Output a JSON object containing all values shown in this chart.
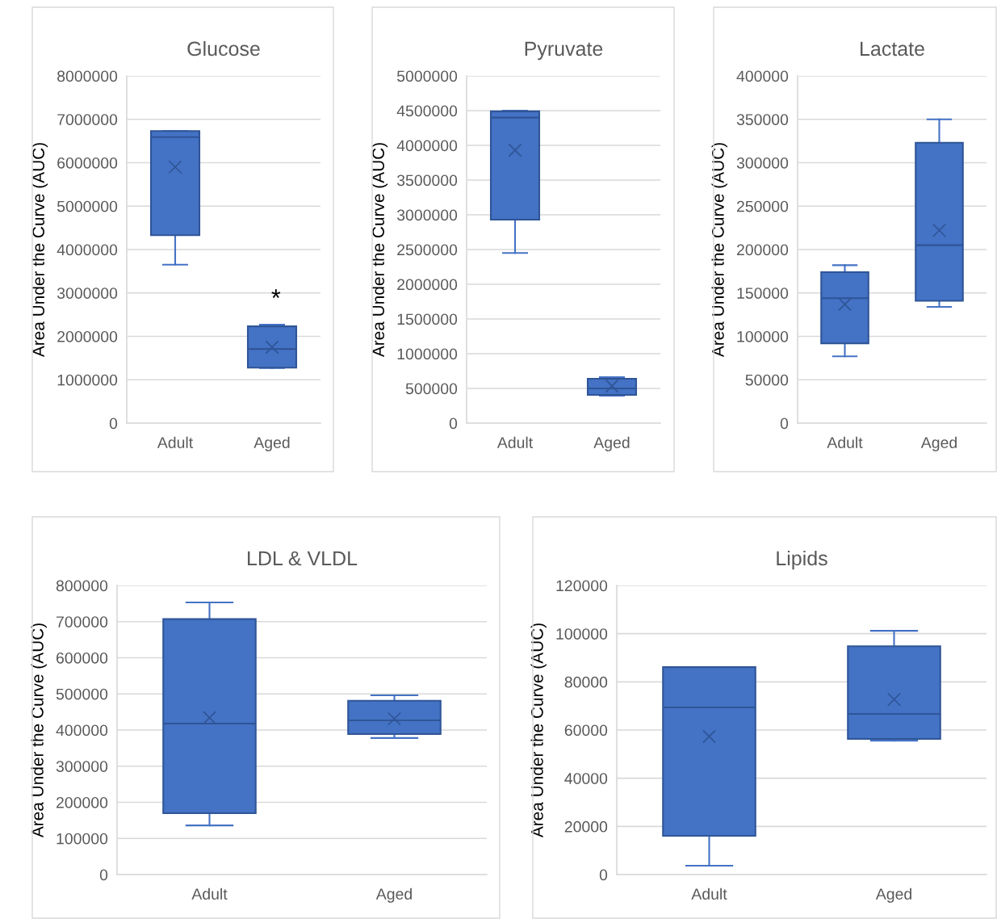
{
  "chart_data": [
    {
      "type": "box",
      "title": "Glucose",
      "ylabel": "Area Under the Curve (AUC)",
      "categories": [
        "Adult",
        "Aged"
      ],
      "color": "#4472c4",
      "marker": "cross",
      "grid": "y",
      "ylim": [
        0,
        8000000
      ],
      "yticks": [
        0,
        1000000,
        2000000,
        3000000,
        4000000,
        5000000,
        6000000,
        7000000,
        8000000
      ],
      "boxes": [
        {
          "low": 3650000,
          "q1": 4330000,
          "median": 6590000,
          "q3": 6730000,
          "high": 6730000,
          "mean": 5900000
        },
        {
          "low": 1270000,
          "q1": 1280000,
          "median": 1710000,
          "q3": 2230000,
          "high": 2270000,
          "mean": 1750000
        }
      ],
      "annotations": [
        "*"
      ]
    },
    {
      "type": "box",
      "title": "Pyruvate",
      "ylabel": "Area Under the Curve (AUC)",
      "categories": [
        "Adult",
        "Aged"
      ],
      "color": "#4472c4",
      "marker": "cross",
      "grid": "y",
      "ylim": [
        0,
        5000000
      ],
      "yticks": [
        0,
        500000,
        1000000,
        1500000,
        2000000,
        2500000,
        3000000,
        3500000,
        4000000,
        4500000,
        5000000
      ],
      "boxes": [
        {
          "low": 2450000,
          "q1": 2930000,
          "median": 4400000,
          "q3": 4490000,
          "high": 4500000,
          "mean": 3930000
        },
        {
          "low": 395000,
          "q1": 407000,
          "median": 500000,
          "q3": 640000,
          "high": 663000,
          "mean": 535000
        }
      ]
    },
    {
      "type": "box",
      "title": "Lactate",
      "ylabel": "Area Under the Curve (AUC)",
      "categories": [
        "Adult",
        "Aged"
      ],
      "color": "#4472c4",
      "marker": "cross",
      "grid": "y",
      "ylim": [
        0,
        400000
      ],
      "yticks": [
        0,
        50000,
        100000,
        150000,
        200000,
        250000,
        300000,
        350000,
        400000
      ],
      "boxes": [
        {
          "low": 77000,
          "q1": 92000,
          "median": 144000,
          "q3": 174000,
          "high": 182000,
          "mean": 137000
        },
        {
          "low": 134000,
          "q1": 141000,
          "median": 205000,
          "q3": 323000,
          "high": 350000,
          "mean": 222000
        }
      ]
    },
    {
      "type": "box",
      "title": "LDL & VLDL",
      "ylabel": "Area Under the Curve (AUC)",
      "categories": [
        "Adult",
        "Aged"
      ],
      "color": "#4472c4",
      "marker": "cross",
      "grid": "y",
      "ylim": [
        0,
        800000
      ],
      "yticks": [
        0,
        100000,
        200000,
        300000,
        400000,
        500000,
        600000,
        700000,
        800000
      ],
      "boxes": [
        {
          "low": 136000,
          "q1": 170000,
          "median": 418000,
          "q3": 707000,
          "high": 753000,
          "mean": 434000
        },
        {
          "low": 378000,
          "q1": 389000,
          "median": 427000,
          "q3": 481000,
          "high": 496000,
          "mean": 431000
        }
      ]
    },
    {
      "type": "box",
      "title": "Lipids",
      "ylabel": "Area Under the Curve (AUC)",
      "categories": [
        "Adult",
        "Aged"
      ],
      "color": "#4472c4",
      "marker": "cross",
      "grid": "y",
      "ylim": [
        0,
        120000
      ],
      "yticks": [
        0,
        20000,
        40000,
        60000,
        80000,
        100000,
        120000
      ],
      "boxes": [
        {
          "low": 3700,
          "q1": 16100,
          "median": 69400,
          "q3": 86100,
          "high": 86100,
          "mean": 57300
        },
        {
          "low": 55600,
          "q1": 56300,
          "median": 66700,
          "q3": 94800,
          "high": 101200,
          "mean": 72700
        }
      ]
    }
  ]
}
